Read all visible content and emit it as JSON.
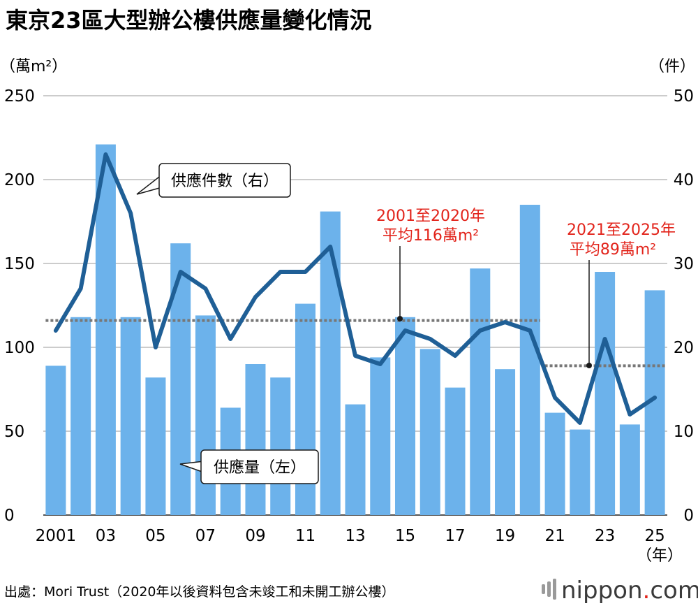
{
  "title": "東京23區大型辦公樓供應量變化情況",
  "left_unit": "（萬m²）",
  "right_unit": "（件）",
  "year_suffix": "（年）",
  "source": "出處：Mori Trust（2020年以後資料包含未竣工和未開工辦公樓）",
  "brand": {
    "name": "nippon",
    "dot": ".",
    "tld": "com",
    "icon": "nippon-logo-icon"
  },
  "colors": {
    "bar": "#6cb2eb",
    "line": "#1f5f96",
    "avg_line": "#777777",
    "avg_text": "#e2231a"
  },
  "chart_data": {
    "type": "bar",
    "title": "東京23區大型辦公樓供應量變化情況",
    "x": [
      2001,
      2002,
      2003,
      2004,
      2005,
      2006,
      2007,
      2008,
      2009,
      2010,
      2011,
      2012,
      2013,
      2014,
      2015,
      2016,
      2017,
      2018,
      2019,
      2020,
      2021,
      2022,
      2023,
      2024,
      2025
    ],
    "x_tick_labels": [
      "2001",
      "03",
      "05",
      "07",
      "09",
      "11",
      "13",
      "15",
      "17",
      "19",
      "21",
      "23",
      "25"
    ],
    "series": [
      {
        "name": "供應量（左）",
        "type": "bar",
        "axis": "left",
        "values": [
          89,
          118,
          221,
          118,
          82,
          162,
          119,
          64,
          90,
          82,
          126,
          181,
          66,
          94,
          118,
          99,
          76,
          147,
          87,
          185,
          61,
          51,
          145,
          54,
          134
        ]
      },
      {
        "name": "供應件數（右）",
        "type": "line",
        "axis": "right",
        "values": [
          22,
          27,
          43,
          36,
          20,
          29,
          27,
          21,
          26,
          29,
          29,
          32,
          19,
          18,
          22,
          21,
          19,
          22,
          23,
          22,
          14,
          11,
          21,
          12,
          14
        ]
      }
    ],
    "y_left": {
      "ylim": [
        0,
        250
      ],
      "ticks": [
        0,
        50,
        100,
        150,
        200,
        250
      ]
    },
    "y_right": {
      "ylim": [
        0,
        50
      ],
      "ticks": [
        0,
        10,
        20,
        30,
        40,
        50
      ]
    },
    "averages": [
      {
        "from": 2001,
        "to": 2020,
        "value": 116,
        "label_lines": [
          "2001至2020年",
          "平均116萬m²"
        ]
      },
      {
        "from": 2021,
        "to": 2025,
        "value": 89,
        "label_lines": [
          "2021至2025年",
          "平均89萬m²"
        ]
      }
    ],
    "grid": true,
    "legend": "inline-callouts"
  }
}
